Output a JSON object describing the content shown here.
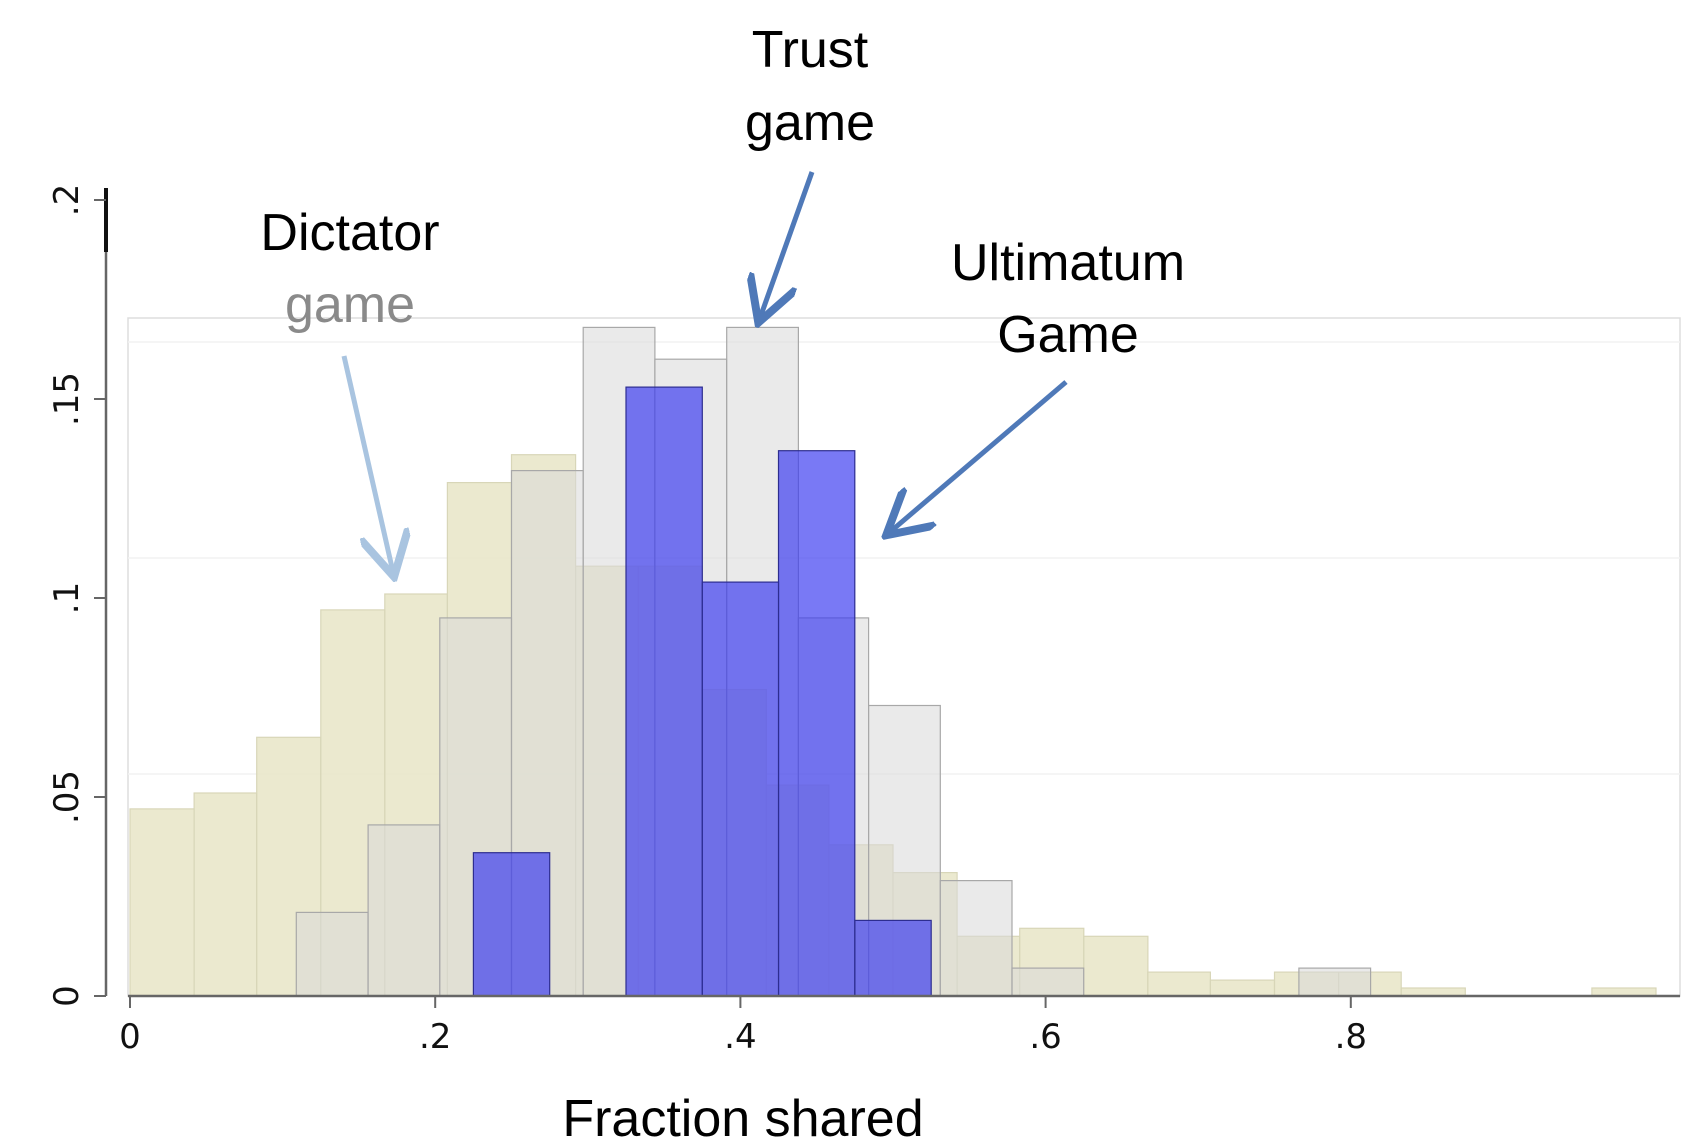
{
  "chart_data": {
    "type": "bar",
    "xlabel": "Fraction shared",
    "ylabel": "",
    "xlim": [
      0,
      1
    ],
    "ylim": [
      0,
      0.2
    ],
    "x_ticks": [
      {
        "value": 0,
        "label": "0"
      },
      {
        "value": 0.2,
        "label": ".2"
      },
      {
        "value": 0.4,
        "label": ".4"
      },
      {
        "value": 0.6,
        "label": ".6"
      },
      {
        "value": 0.8,
        "label": ".8"
      }
    ],
    "y_ticks": [
      {
        "value": 0,
        "label": "0"
      },
      {
        "value": 0.05,
        "label": ".05"
      },
      {
        "value": 0.1,
        "label": ".1"
      },
      {
        "value": 0.15,
        "label": ".15"
      },
      {
        "value": 0.2,
        "label": ".2"
      }
    ],
    "grid": false,
    "series": [
      {
        "color": "#e6e4c4",
        "bins": [
          {
            "x0": 0.0,
            "x1": 0.042,
            "y": 0.047
          },
          {
            "x0": 0.042,
            "x1": 0.083,
            "y": 0.051
          },
          {
            "x0": 0.083,
            "x1": 0.125,
            "y": 0.065
          },
          {
            "x0": 0.125,
            "x1": 0.167,
            "y": 0.097
          },
          {
            "x0": 0.167,
            "x1": 0.208,
            "y": 0.101
          },
          {
            "x0": 0.208,
            "x1": 0.25,
            "y": 0.129
          },
          {
            "x0": 0.25,
            "x1": 0.292,
            "y": 0.136
          },
          {
            "x0": 0.292,
            "x1": 0.333,
            "y": 0.108
          },
          {
            "x0": 0.333,
            "x1": 0.375,
            "y": 0.108
          },
          {
            "x0": 0.375,
            "x1": 0.417,
            "y": 0.077
          },
          {
            "x0": 0.417,
            "x1": 0.458,
            "y": 0.053
          },
          {
            "x0": 0.458,
            "x1": 0.5,
            "y": 0.038
          },
          {
            "x0": 0.5,
            "x1": 0.542,
            "y": 0.031
          },
          {
            "x0": 0.542,
            "x1": 0.583,
            "y": 0.015
          },
          {
            "x0": 0.583,
            "x1": 0.625,
            "y": 0.017
          },
          {
            "x0": 0.625,
            "x1": 0.667,
            "y": 0.015
          },
          {
            "x0": 0.667,
            "x1": 0.708,
            "y": 0.006
          },
          {
            "x0": 0.708,
            "x1": 0.75,
            "y": 0.004
          },
          {
            "x0": 0.75,
            "x1": 0.792,
            "y": 0.006
          },
          {
            "x0": 0.792,
            "x1": 0.833,
            "y": 0.006
          },
          {
            "x0": 0.833,
            "x1": 0.875,
            "y": 0.002
          },
          {
            "x0": 0.958,
            "x1": 1.0,
            "y": 0.002
          }
        ]
      },
      {
        "color": "#d9d9d9",
        "bins": [
          {
            "x0": 0.109,
            "x1": 0.156,
            "y": 0.021
          },
          {
            "x0": 0.156,
            "x1": 0.203,
            "y": 0.043
          },
          {
            "x0": 0.203,
            "x1": 0.25,
            "y": 0.095
          },
          {
            "x0": 0.25,
            "x1": 0.297,
            "y": 0.132
          },
          {
            "x0": 0.297,
            "x1": 0.344,
            "y": 0.168
          },
          {
            "x0": 0.344,
            "x1": 0.391,
            "y": 0.16
          },
          {
            "x0": 0.391,
            "x1": 0.438,
            "y": 0.168
          },
          {
            "x0": 0.438,
            "x1": 0.484,
            "y": 0.095
          },
          {
            "x0": 0.484,
            "x1": 0.531,
            "y": 0.073
          },
          {
            "x0": 0.531,
            "x1": 0.578,
            "y": 0.029
          },
          {
            "x0": 0.578,
            "x1": 0.625,
            "y": 0.007
          },
          {
            "x0": 0.766,
            "x1": 0.813,
            "y": 0.007
          }
        ]
      },
      {
        "color": "#3a3af0",
        "bins": [
          {
            "x0": 0.225,
            "x1": 0.275,
            "y": 0.036
          },
          {
            "x0": 0.325,
            "x1": 0.375,
            "y": 0.153
          },
          {
            "x0": 0.375,
            "x1": 0.425,
            "y": 0.104
          },
          {
            "x0": 0.425,
            "x1": 0.475,
            "y": 0.137
          },
          {
            "x0": 0.475,
            "x1": 0.525,
            "y": 0.019
          }
        ]
      }
    ],
    "annotations": [
      {
        "lines": [
          "Dictator",
          "game"
        ],
        "colors": [
          "#000000",
          "#8a8a8a"
        ]
      },
      {
        "lines": [
          "Trust",
          "game"
        ],
        "colors": [
          "#000000",
          "#000000"
        ]
      },
      {
        "lines": [
          "Ultimatum",
          "Game"
        ],
        "colors": [
          "#000000",
          "#000000"
        ]
      }
    ],
    "arrow_colors": {
      "dictator": "#a9c4e0",
      "trust": "#4f79b8",
      "ultimatum": "#4f79b8"
    }
  }
}
